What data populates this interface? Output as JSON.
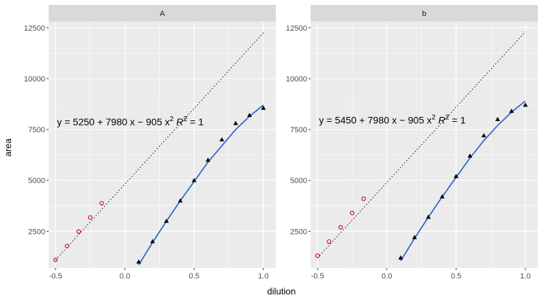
{
  "chart_data": {
    "type": "scatter",
    "xlabel": "dilution",
    "ylabel": "area",
    "xlim": [
      -0.55,
      1.09
    ],
    "ylim": [
      700,
      12800
    ],
    "x_ticks": [
      -0.5,
      0.0,
      0.5,
      1.0
    ],
    "x_tick_labels": [
      "-0.5",
      "0.0",
      "0.5",
      "1.0"
    ],
    "y_ticks": [
      2500,
      5000,
      7500,
      10000,
      12500
    ],
    "y_tick_labels": [
      "2500",
      "5000",
      "7500",
      "10000",
      "12500"
    ],
    "grid": true,
    "colors": {
      "panel_bg": "#ebebeb",
      "grid_major": "#ffffff",
      "strip_bg": "#d9d9d9",
      "fit_line": "#3366cc",
      "extrap_line": "#000000",
      "open_points": "#cc0000",
      "filled_points": "#000000"
    },
    "panels": [
      {
        "strip_label": "A",
        "equation": {
          "prefix": "y = 5250 + 7980 x − 905 x",
          "sup": "2",
          "r_label": "R",
          "r_sup": "2",
          "r_value": " = 1",
          "anchor": [
            -0.49,
            7700
          ]
        },
        "measured": {
          "x": [
            0.1,
            0.2,
            0.3,
            0.4,
            0.5,
            0.6,
            0.7,
            0.8,
            0.9,
            1.0
          ],
          "y": [
            1000,
            2000,
            3000,
            4000,
            5000,
            6000,
            7000,
            7800,
            8200,
            8550
          ]
        },
        "extrapolated": {
          "x": [
            -0.5,
            -0.417,
            -0.333,
            -0.25,
            -0.167
          ],
          "y": [
            1100,
            1780,
            2490,
            3180,
            3880
          ]
        },
        "fit_line": {
          "x": [
            0.1,
            0.2,
            0.3,
            0.4,
            0.5,
            0.6,
            0.7,
            0.8,
            0.9,
            1.0
          ],
          "y": [
            850,
            1950,
            3000,
            4000,
            4950,
            5900,
            6700,
            7500,
            8150,
            8700
          ]
        },
        "extrap_line": {
          "x": [
            -0.5,
            1.0
          ],
          "y": [
            1100,
            12250
          ]
        }
      },
      {
        "strip_label": "b",
        "equation": {
          "prefix": "y = 5450 + 7980 x − 905 x",
          "sup": "2",
          "r_label": "R",
          "r_sup": "2",
          "r_value": " = 1",
          "anchor": [
            -0.49,
            7800
          ]
        },
        "measured": {
          "x": [
            0.1,
            0.2,
            0.3,
            0.4,
            0.5,
            0.6,
            0.7,
            0.8,
            0.9,
            1.0
          ],
          "y": [
            1200,
            2200,
            3200,
            4200,
            5200,
            6200,
            7200,
            8000,
            8400,
            8700
          ]
        },
        "extrapolated": {
          "x": [
            -0.5,
            -0.417,
            -0.333,
            -0.25,
            -0.167
          ],
          "y": [
            1300,
            2000,
            2700,
            3400,
            4100
          ]
        },
        "fit_line": {
          "x": [
            0.1,
            0.2,
            0.3,
            0.4,
            0.5,
            0.6,
            0.7,
            0.8,
            0.9,
            1.0
          ],
          "y": [
            1050,
            2150,
            3200,
            4200,
            5150,
            6100,
            6950,
            7700,
            8350,
            8900
          ]
        },
        "extrap_line": {
          "x": [
            -0.5,
            1.0
          ],
          "y": [
            1200,
            12300
          ]
        }
      }
    ]
  }
}
